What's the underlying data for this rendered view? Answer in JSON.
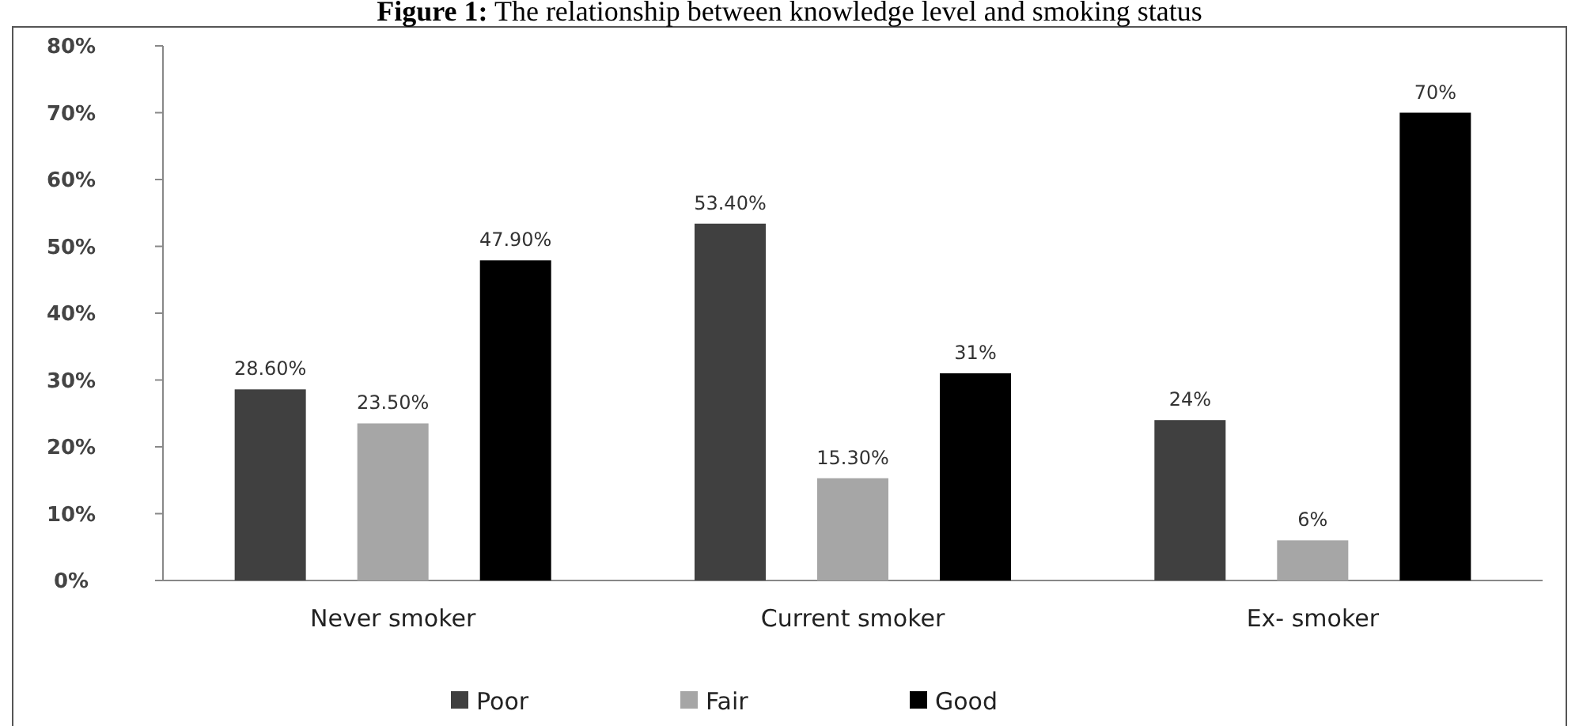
{
  "chart_data": {
    "type": "bar",
    "title": "Figure 1: The relationship between knowledge level and smoking status",
    "categories": [
      "Never smoker",
      "Current smoker",
      "Ex- smoker"
    ],
    "series": [
      {
        "name": "Poor",
        "color": "#404040",
        "values": [
          28.6,
          53.4,
          24
        ],
        "value_labels": [
          "28.60%",
          "53.40%",
          "24%"
        ]
      },
      {
        "name": "Fair",
        "color": "#a6a6a6",
        "values": [
          23.5,
          15.3,
          6
        ],
        "value_labels": [
          "23.50%",
          "15.30%",
          "6%"
        ]
      },
      {
        "name": "Good",
        "color": "#000000",
        "values": [
          47.9,
          31,
          70
        ],
        "value_labels": [
          "47.90%",
          "31%",
          "70%"
        ]
      }
    ],
    "ylim": [
      0,
      80
    ],
    "yticks": [
      {
        "value": 0,
        "label": "0%"
      },
      {
        "value": 10,
        "label": "10%"
      },
      {
        "value": 20,
        "label": "20%"
      },
      {
        "value": 30,
        "label": "30%"
      },
      {
        "value": 40,
        "label": "40%"
      },
      {
        "value": 50,
        "label": "50%"
      },
      {
        "value": 60,
        "label": "60%"
      },
      {
        "value": 70,
        "label": "70%"
      },
      {
        "value": 80,
        "label": "80%"
      }
    ],
    "legend": "bottom"
  }
}
